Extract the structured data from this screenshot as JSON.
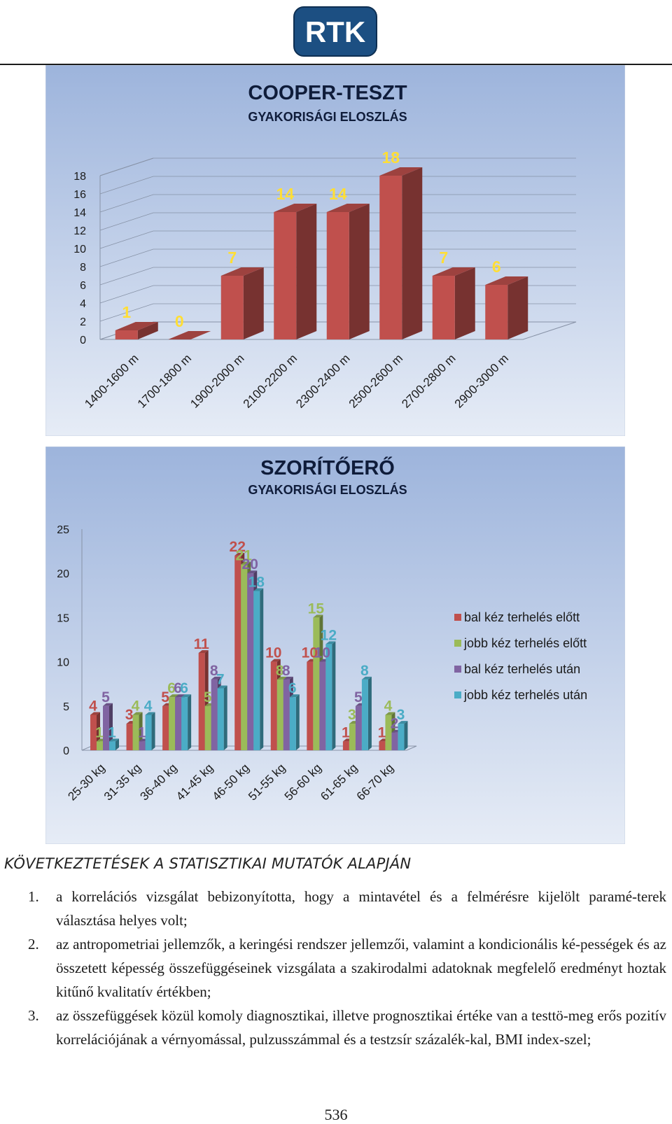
{
  "header": {
    "logo_text": "RTK",
    "logo_colors": {
      "fill": "#1c4f82",
      "text": "#ffffff"
    }
  },
  "chart_data": [
    {
      "type": "bar",
      "title": "COOPER-TESZT",
      "subtitle": "GYAKORISÁGI ELOSZLÁS",
      "categories": [
        "1400-1600 m",
        "1700-1800 m",
        "1900-2000 m",
        "2100-2200 m",
        "2300-2400 m",
        "2500-2600 m",
        "2700-2800 m",
        "2900-3000 m"
      ],
      "values": [
        1,
        0,
        7,
        14,
        14,
        18,
        7,
        6
      ],
      "yticks": [
        0,
        2,
        4,
        6,
        8,
        10,
        12,
        14,
        16,
        18
      ],
      "ylim": [
        0,
        18
      ],
      "xlabel": "",
      "ylabel": "",
      "grid": true,
      "legend": "none",
      "colors": {
        "bar": "#c0504d",
        "label": "#ffde36",
        "title": "#0f1c3a"
      }
    },
    {
      "type": "bar",
      "title": "SZORÍTŐERŐ",
      "subtitle": "GYAKORISÁGI ELOSZLÁS",
      "categories": [
        "25-30 kg",
        "31-35 kg",
        "36-40 kg",
        "41-45 kg",
        "46-50 kg",
        "51-55 kg",
        "56-60 kg",
        "61-65 kg",
        "66-70 kg"
      ],
      "series": [
        {
          "name": "bal kéz terhelés előtt",
          "values": [
            4,
            3,
            5,
            11,
            22,
            10,
            10,
            1,
            1
          ],
          "color": "#c0504d"
        },
        {
          "name": "jobb kéz terhelés előtt",
          "values": [
            1,
            4,
            6,
            5,
            21,
            8,
            15,
            3,
            4
          ],
          "color": "#9bbb59"
        },
        {
          "name": "bal kéz terhelés után",
          "values": [
            5,
            1,
            6,
            8,
            20,
            8,
            10,
            5,
            2
          ],
          "color": "#8064a2"
        },
        {
          "name": "jobb kéz terhelés után",
          "values": [
            1,
            4,
            6,
            7,
            18,
            6,
            12,
            8,
            3
          ],
          "color": "#4bacc6"
        }
      ],
      "yticks": [
        0,
        5,
        10,
        15,
        20,
        25
      ],
      "ylim": [
        0,
        25
      ],
      "xlabel": "",
      "ylabel": "",
      "grid": false,
      "legend": "right",
      "colors": {
        "title": "#0f1c3a"
      }
    }
  ],
  "conclusions": {
    "heading": "KÖVETKEZTETÉSEK A STATISZTIKAI MUTATÓK ALAPJÁN",
    "items": [
      {
        "num": "1.",
        "text": "a korrelációs vizsgálat bebizonyította, hogy a mintavétel és a felmérésre kijelölt paramé-terek választása helyes volt;"
      },
      {
        "num": "2.",
        "text": "az antropometriai jellemzők, a keringési rendszer jellemzői, valamint a kondicionális ké-pességek és az összetett képesség összefüggéseinek vizsgálata a szakirodalmi adatoknak megfelelő eredményt hoztak kitűnő kvalitatív értékben;"
      },
      {
        "num": "3.",
        "text": "az összefüggések közül komoly diagnosztikai, illetve prognosztikai értéke van a testtö-meg erős pozitív korrelációjának a vérnyomással, pulzusszámmal és a testzsír százalék-kal, BMI index-szel;"
      }
    ]
  },
  "footer": {
    "page_number": "536"
  }
}
